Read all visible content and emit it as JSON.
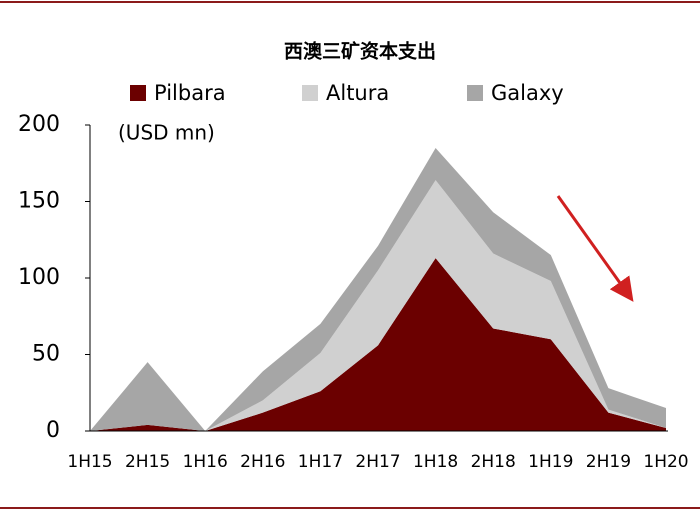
{
  "chart_data": {
    "type": "stacked_area",
    "title": "西澳三矿资本支出",
    "y_label": "(USD mn)",
    "categories": [
      "1H15",
      "2H15",
      "1H16",
      "2H16",
      "1H17",
      "2H17",
      "1H18",
      "2H18",
      "1H19",
      "2H19",
      "1H20"
    ],
    "series": [
      {
        "name": "Pilbara",
        "color": "#6b0000",
        "values": [
          0,
          4,
          0,
          12,
          26,
          56,
          113,
          67,
          60,
          12,
          2
        ]
      },
      {
        "name": "Altura",
        "color": "#d0d0d0",
        "values": [
          0,
          0,
          0,
          8,
          25,
          49,
          51,
          49,
          38,
          2,
          0
        ]
      },
      {
        "name": "Galaxy",
        "color": "#a6a6a6",
        "values": [
          0,
          41,
          0,
          19,
          19,
          16,
          21,
          27,
          17,
          14,
          13
        ]
      }
    ],
    "ylim": [
      0,
      200
    ],
    "yticks": [
      0,
      50,
      100,
      150,
      200
    ],
    "grid": false,
    "legend": "top"
  }
}
